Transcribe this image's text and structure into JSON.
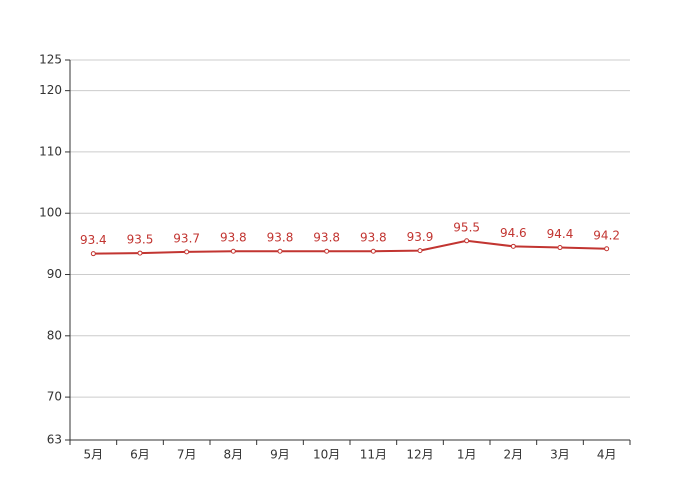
{
  "chart_data": {
    "type": "line",
    "categories": [
      "5月",
      "6月",
      "7月",
      "8月",
      "9月",
      "10月",
      "11月",
      "12月",
      "1月",
      "2月",
      "3月",
      "4月"
    ],
    "series": [
      {
        "color": "#c23531",
        "values": [
          93.4,
          93.5,
          93.7,
          93.8,
          93.8,
          93.8,
          93.8,
          93.9,
          95.5,
          94.6,
          94.4,
          94.2
        ]
      }
    ],
    "ylim": [
      63,
      125
    ],
    "yticks": [
      63,
      70,
      80,
      90,
      100,
      110,
      120,
      125
    ],
    "grid": true
  }
}
